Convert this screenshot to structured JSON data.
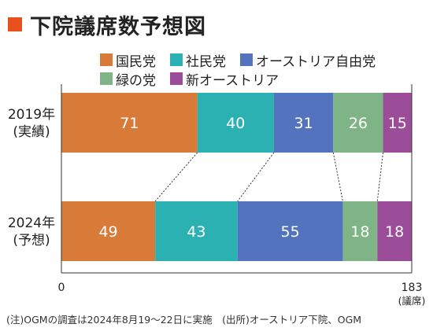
{
  "title": "下院議席数予想図",
  "title_marker_color": "#e8501e",
  "colors": [
    "#d97b38",
    "#2bb1b1",
    "#5473bf",
    "#7fb586",
    "#9c4d9a"
  ],
  "footnote": "(注)OGMの調査は2024年8月19〜22日に実施　(出所)オーストリア下院、OGM",
  "chart_data": {
    "type": "bar",
    "orientation": "horizontal",
    "stacked": true,
    "categories": [
      {
        "line1": "2019年",
        "line2": "(実績)"
      },
      {
        "line1": "2024年",
        "line2": "(予想)"
      }
    ],
    "series": [
      {
        "name": "国民党",
        "values": [
          71,
          49
        ]
      },
      {
        "name": "社民党",
        "values": [
          40,
          43
        ]
      },
      {
        "name": "オーストリア自由党",
        "values": [
          31,
          55
        ]
      },
      {
        "name": "緑の党",
        "values": [
          26,
          18
        ]
      },
      {
        "name": "新オーストリア",
        "values": [
          15,
          18
        ]
      }
    ],
    "legend_rows": [
      [
        0,
        1,
        2
      ],
      [
        3,
        4
      ]
    ],
    "xlim": [
      0,
      183
    ],
    "x_ticks": [
      "0",
      "183"
    ],
    "x_unit": "(議席)",
    "grid": false,
    "connector_lines": "dotted"
  }
}
